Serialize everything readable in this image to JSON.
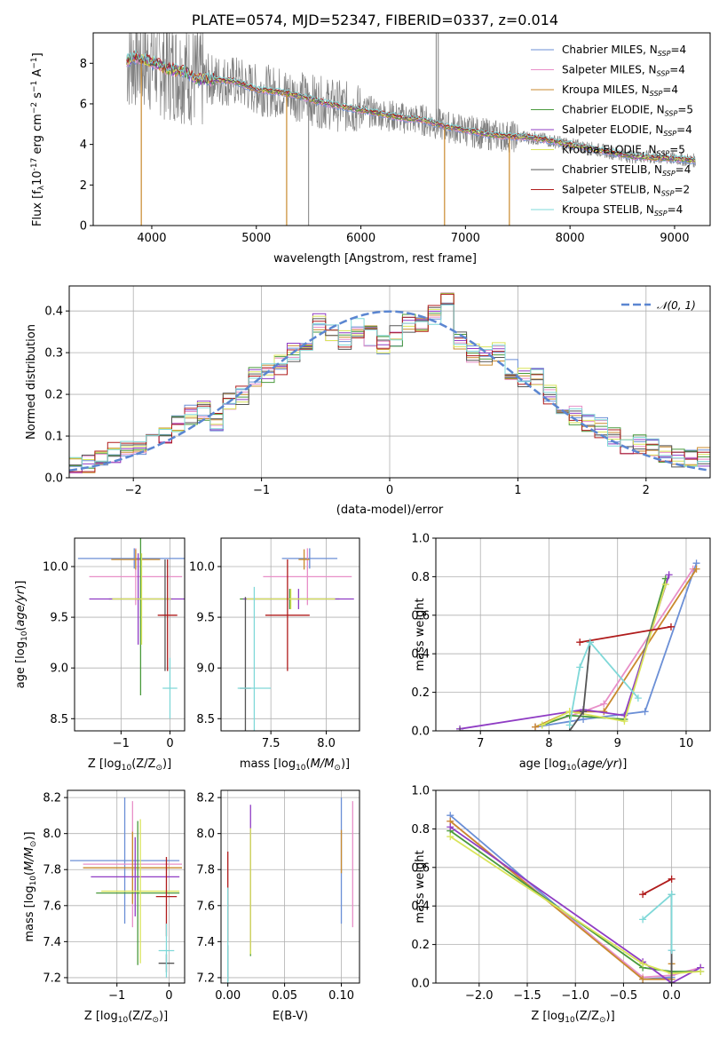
{
  "figure": {
    "title": "PLATE=0574, MJD=52347, FIBERID=0337, z=0.014"
  },
  "colors": {
    "Chabrier MILES": "#6b8fd6",
    "Salpeter MILES": "#e88fc8",
    "Kroupa MILES": "#c98a2e",
    "Chabrier ELODIE": "#4a9a3c",
    "Salpeter ELODIE": "#8f3cc4",
    "Kroupa ELODIE": "#d9e45a",
    "Chabrier STELIB": "#555555",
    "Salpeter STELIB": "#b01c1c",
    "Kroupa STELIB": "#7fd8d8",
    "data": "#808080",
    "gauss": "#5b86d1",
    "grid": "#b0b0b0"
  },
  "chart_data": [
    {
      "type": "line",
      "name": "spectrum",
      "title": "PLATE=0574, MJD=52347, FIBERID=0337, z=0.014",
      "xlabel": "wavelength [Angstrom, rest frame]",
      "ylabel_main": "Flux [f",
      "ylabel_sub": "λ",
      "ylabel_rest": "10",
      "ylabel_exp": "-17",
      "ylabel_units": "erg cm",
      "xlim": [
        3440,
        9340
      ],
      "ylim": [
        0,
        9.5
      ],
      "xticks": [
        4000,
        5000,
        6000,
        7000,
        8000,
        9000
      ],
      "yticks": [
        0,
        2,
        4,
        6,
        8
      ],
      "grid": false,
      "legend": [
        {
          "label": "Chabrier MILES, N",
          "sub": "SSP",
          "val": "=4"
        },
        {
          "label": "Salpeter MILES, N",
          "sub": "SSP",
          "val": "=4"
        },
        {
          "label": "Kroupa MILES, N",
          "sub": "SSP",
          "val": "=4"
        },
        {
          "label": "Chabrier ELODIE, N",
          "sub": "SSP",
          "val": "=5"
        },
        {
          "label": "Salpeter ELODIE, N",
          "sub": "SSP",
          "val": "=4"
        },
        {
          "label": "Kroupa ELODIE, N",
          "sub": "SSP",
          "val": "=5"
        },
        {
          "label": "Chabrier STELIB, N",
          "sub": "SSP",
          "val": "=4"
        },
        {
          "label": "Salpeter STELIB, N",
          "sub": "SSP",
          "val": "=2"
        },
        {
          "label": "Kroupa STELIB, N",
          "sub": "SSP",
          "val": "=4"
        }
      ],
      "model_envelope": {
        "x": [
          3760,
          3850,
          3950,
          4050,
          4150,
          4300,
          4450,
          4600,
          4800,
          5000,
          5200,
          5400,
          5600,
          5800,
          6000,
          6200,
          6400,
          6600,
          6800,
          7000,
          7200,
          7400,
          7600,
          7800,
          8000,
          8200,
          8400,
          8600,
          8800,
          9000,
          9200
        ],
        "y": [
          8.1,
          8.3,
          8.1,
          8.0,
          7.7,
          7.6,
          7.2,
          7.2,
          7.1,
          6.7,
          6.6,
          6.4,
          6.1,
          5.9,
          5.7,
          5.5,
          5.3,
          5.2,
          4.9,
          4.7,
          4.5,
          4.4,
          4.35,
          4.2,
          4.0,
          3.8,
          3.6,
          3.4,
          3.35,
          3.3,
          3.2
        ]
      },
      "model_drops": [
        {
          "x": 3900,
          "model": "Kroupa MILES"
        },
        {
          "x": 5290,
          "model": "Kroupa MILES"
        },
        {
          "x": 6800,
          "model": "Kroupa MILES"
        },
        {
          "x": 7420,
          "model": "Kroupa MILES"
        }
      ],
      "data_spikes": [
        {
          "x": 5500,
          "y": 0.0
        },
        {
          "x": 6720,
          "y": 9.5
        },
        {
          "x": 6740,
          "y": 9.5
        }
      ]
    },
    {
      "type": "line",
      "name": "residual-histogram",
      "xlabel": "(data-model)/error",
      "ylabel": "Normed distribution",
      "xlim": [
        -2.5,
        2.5
      ],
      "ylim": [
        0,
        0.46
      ],
      "xticks": [
        -2,
        -1,
        0,
        1,
        2
      ],
      "yticks": [
        0.0,
        0.1,
        0.2,
        0.3,
        0.4
      ],
      "grid": true,
      "legend": [
        {
          "label": "𝒩(0, 1)",
          "style": "dashed"
        }
      ],
      "bin_centers": [
        -2.45,
        -2.35,
        -2.25,
        -2.15,
        -2.05,
        -1.95,
        -1.85,
        -1.75,
        -1.65,
        -1.55,
        -1.45,
        -1.35,
        -1.25,
        -1.15,
        -1.05,
        -0.95,
        -0.85,
        -0.75,
        -0.65,
        -0.55,
        -0.45,
        -0.35,
        -0.25,
        -0.15,
        -0.05,
        0.05,
        0.15,
        0.25,
        0.35,
        0.45,
        0.55,
        0.65,
        0.75,
        0.85,
        0.95,
        1.05,
        1.15,
        1.25,
        1.35,
        1.45,
        1.55,
        1.65,
        1.75,
        1.85,
        1.95,
        2.05,
        2.15,
        2.25,
        2.35,
        2.45
      ],
      "hist_values": [
        0.03,
        0.035,
        0.045,
        0.06,
        0.07,
        0.08,
        0.09,
        0.1,
        0.13,
        0.15,
        0.16,
        0.13,
        0.18,
        0.2,
        0.24,
        0.25,
        0.27,
        0.3,
        0.31,
        0.37,
        0.35,
        0.33,
        0.36,
        0.34,
        0.32,
        0.34,
        0.37,
        0.36,
        0.39,
        0.42,
        0.33,
        0.3,
        0.29,
        0.3,
        0.26,
        0.24,
        0.24,
        0.2,
        0.17,
        0.15,
        0.13,
        0.12,
        0.1,
        0.08,
        0.08,
        0.07,
        0.06,
        0.05,
        0.05,
        0.05
      ],
      "gauss": {
        "mu": 0,
        "sigma": 1
      }
    },
    {
      "type": "scatter",
      "name": "age-vs-Z",
      "xlabel_main": "Z [log",
      "xlabel_sub": "10",
      "xlabel_rest": "(Z/Z",
      "ylabel_main": "age  [log",
      "ylabel_sub": "10",
      "ylabel_rest": "(age/yr)]",
      "xlim": [
        -1.95,
        0.3
      ],
      "ylim": [
        8.38,
        10.28
      ],
      "xticks": [
        -1,
        0
      ],
      "yticks": [
        8.5,
        9.0,
        9.5,
        10.0
      ],
      "grid": true,
      "points": [
        {
          "model": "Chabrier MILES",
          "x": -0.73,
          "y": 10.08,
          "xerr": 1.15,
          "yerr": 0.1
        },
        {
          "model": "Salpeter MILES",
          "x": -0.7,
          "y": 9.9,
          "xerr": 0.95,
          "yerr": 0.28
        },
        {
          "model": "Kroupa MILES",
          "x": -0.7,
          "y": 10.07,
          "xerr": 0.5,
          "yerr": 0.1
        },
        {
          "model": "Chabrier ELODIE",
          "x": -0.6,
          "y": 9.68,
          "xerr": 0.65,
          "yerr": 0.95
        },
        {
          "model": "Salpeter ELODIE",
          "x": -0.65,
          "y": 9.68,
          "xerr": 1.0,
          "yerr": 0.45
        },
        {
          "model": "Kroupa ELODIE",
          "x": -0.58,
          "y": 9.68,
          "xerr": 0.6,
          "yerr": 0.45
        },
        {
          "model": "Chabrier STELIB",
          "x": -0.1,
          "y": 9.52,
          "xerr": 0.05,
          "yerr": 0.55
        },
        {
          "model": "Salpeter STELIB",
          "x": -0.05,
          "y": 9.52,
          "xerr": 0.2,
          "yerr": 0.55
        },
        {
          "model": "Kroupa STELIB",
          "x": 0.0,
          "y": 8.8,
          "xerr": 0.15,
          "yerr": 0.3
        }
      ]
    },
    {
      "type": "scatter",
      "name": "age-vs-mass",
      "xlabel_main": "mass [log",
      "xlabel_sub": "10",
      "xlabel_rest": "(M/M",
      "xlim": [
        7.05,
        8.3
      ],
      "ylim": [
        8.38,
        10.28
      ],
      "xticks": [
        7.5,
        8.0
      ],
      "yticks": [
        8.5,
        9.0,
        9.5,
        10.0
      ],
      "grid": true,
      "points": [
        {
          "model": "Chabrier MILES",
          "x": 7.85,
          "y": 10.08,
          "xerr": 0.25,
          "yerr": 0.1
        },
        {
          "model": "Salpeter MILES",
          "x": 7.83,
          "y": 9.9,
          "xerr": 0.4,
          "yerr": 0.28
        },
        {
          "model": "Kroupa MILES",
          "x": 7.8,
          "y": 10.07,
          "xerr": 0.05,
          "yerr": 0.1
        },
        {
          "model": "Chabrier ELODIE",
          "x": 7.67,
          "y": 9.68,
          "xerr": 0.45,
          "yerr": 0.1
        },
        {
          "model": "Salpeter ELODIE",
          "x": 7.75,
          "y": 9.68,
          "xerr": 0.5,
          "yerr": 0.1
        },
        {
          "model": "Kroupa ELODIE",
          "x": 7.68,
          "y": 9.68,
          "xerr": 0.4,
          "yerr": 0.1
        },
        {
          "model": "Chabrier STELIB",
          "x": 7.27,
          "y": 8.8,
          "xerr": 0.05,
          "yerr": 0.9
        },
        {
          "model": "Salpeter STELIB",
          "x": 7.65,
          "y": 9.52,
          "xerr": 0.2,
          "yerr": 0.55
        },
        {
          "model": "Kroupa STELIB",
          "x": 7.35,
          "y": 8.8,
          "xerr": 0.15,
          "yerr": 1.0
        }
      ]
    },
    {
      "type": "line",
      "name": "mass-weight-vs-age",
      "xlabel_main": "age  [log",
      "xlabel_sub": "10",
      "xlabel_rest": "(age/yr)]",
      "ylabel": "mass weight",
      "xlim": [
        6.35,
        10.35
      ],
      "ylim": [
        0,
        1.0
      ],
      "xticks": [
        7,
        8,
        9,
        10
      ],
      "yticks": [
        0.0,
        0.2,
        0.4,
        0.6,
        0.8,
        1.0
      ],
      "grid": true,
      "series": [
        {
          "model": "Chabrier MILES",
          "x": [
            7.8,
            8.5,
            9.4,
            10.15
          ],
          "y": [
            0.02,
            0.06,
            0.1,
            0.87
          ]
        },
        {
          "model": "Salpeter MILES",
          "x": [
            7.8,
            8.5,
            8.8,
            10.1
          ],
          "y": [
            0.02,
            0.1,
            0.14,
            0.84
          ]
        },
        {
          "model": "Kroupa MILES",
          "x": [
            7.8,
            8.3,
            8.8,
            10.15
          ],
          "y": [
            0.02,
            0.1,
            0.1,
            0.84
          ]
        },
        {
          "model": "Chabrier ELODIE",
          "x": [
            7.9,
            8.3,
            9.1,
            9.7
          ],
          "y": [
            0.03,
            0.08,
            0.06,
            0.79
          ]
        },
        {
          "model": "Salpeter ELODIE",
          "x": [
            6.7,
            8.5,
            9.1,
            9.75
          ],
          "y": [
            0.01,
            0.11,
            0.08,
            0.81
          ]
        },
        {
          "model": "Kroupa ELODIE",
          "x": [
            7.9,
            8.3,
            9.1,
            9.7
          ],
          "y": [
            0.03,
            0.1,
            0.05,
            0.76
          ]
        },
        {
          "model": "Chabrier STELIB",
          "x": [
            6.7,
            8.3,
            8.5,
            8.6
          ],
          "y": [
            0.0,
            0.0,
            0.1,
            0.46
          ]
        },
        {
          "model": "Salpeter STELIB",
          "x": [
            8.45,
            9.78
          ],
          "y": [
            0.46,
            0.54
          ]
        },
        {
          "model": "Kroupa STELIB",
          "x": [
            8.3,
            8.45,
            8.6,
            9.3
          ],
          "y": [
            0.03,
            0.33,
            0.46,
            0.17
          ]
        }
      ]
    },
    {
      "type": "scatter",
      "name": "mass-vs-Z",
      "xlabel_main": "Z [log",
      "xlabel_sub": "10",
      "xlabel_rest": "(Z/Z",
      "ylabel_main": "mass [log",
      "ylabel_sub": "10",
      "ylabel_rest": "(M/M",
      "xlim": [
        -1.95,
        0.3
      ],
      "ylim": [
        7.17,
        8.24
      ],
      "xticks": [
        -1,
        0
      ],
      "yticks": [
        7.2,
        7.4,
        7.6,
        7.8,
        8.0,
        8.2
      ],
      "grid": true,
      "points": [
        {
          "model": "Chabrier MILES",
          "x": -0.85,
          "y": 7.85,
          "xerr": 1.05,
          "yerr": 0.35
        },
        {
          "model": "Salpeter MILES",
          "x": -0.7,
          "y": 7.83,
          "xerr": 0.95,
          "yerr": 0.35
        },
        {
          "model": "Kroupa MILES",
          "x": -0.7,
          "y": 7.81,
          "xerr": 0.95,
          "yerr": 0.2
        },
        {
          "model": "Chabrier ELODIE",
          "x": -0.6,
          "y": 7.67,
          "xerr": 0.8,
          "yerr": 0.4
        },
        {
          "model": "Salpeter ELODIE",
          "x": -0.65,
          "y": 7.76,
          "xerr": 0.85,
          "yerr": 0.22
        },
        {
          "model": "Kroupa ELODIE",
          "x": -0.55,
          "y": 7.68,
          "xerr": 0.75,
          "yerr": 0.4
        },
        {
          "model": "Chabrier STELIB",
          "x": -0.05,
          "y": 7.28,
          "xerr": 0.15,
          "yerr": 0.05
        },
        {
          "model": "Salpeter STELIB",
          "x": -0.05,
          "y": 7.65,
          "xerr": 0.2,
          "yerr": 0.22
        },
        {
          "model": "Kroupa STELIB",
          "x": -0.05,
          "y": 7.35,
          "xerr": 0.15,
          "yerr": 0.15
        }
      ]
    },
    {
      "type": "scatter",
      "name": "mass-vs-EBV",
      "xlabel": "E(B-V)",
      "xlim": [
        -0.006,
        0.116
      ],
      "ylim": [
        7.17,
        8.24
      ],
      "xticks": [
        0.0,
        0.05,
        0.1
      ],
      "yticks": [
        7.2,
        7.4,
        7.6,
        7.8,
        8.0,
        8.2
      ],
      "grid": true,
      "points": [
        {
          "model": "Chabrier MILES",
          "x": 0.1,
          "y": 7.85,
          "xerr": 0,
          "yerr": 0.35
        },
        {
          "model": "Salpeter MILES",
          "x": 0.11,
          "y": 7.83,
          "xerr": 0,
          "yerr": 0.35
        },
        {
          "model": "Kroupa MILES",
          "x": 0.1,
          "y": 7.9,
          "xerr": 0,
          "yerr": 0.12
        },
        {
          "model": "Chabrier ELODIE",
          "x": 0.02,
          "y": 7.67,
          "xerr": 0,
          "yerr": 0.35
        },
        {
          "model": "Salpeter ELODIE",
          "x": 0.02,
          "y": 7.76,
          "xerr": 0,
          "yerr": 0.4
        },
        {
          "model": "Kroupa ELODIE",
          "x": 0.02,
          "y": 7.68,
          "xerr": 0,
          "yerr": 0.35
        },
        {
          "model": "Chabrier STELIB",
          "x": 0.0,
          "y": 7.28,
          "xerr": 0,
          "yerr": 0.1
        },
        {
          "model": "Salpeter STELIB",
          "x": 0.0,
          "y": 7.65,
          "xerr": 0,
          "yerr": 0.25
        },
        {
          "model": "Kroupa STELIB",
          "x": 0.0,
          "y": 7.35,
          "xerr": 0,
          "yerr": 0.35
        }
      ]
    },
    {
      "type": "line",
      "name": "mass-weight-vs-Z",
      "xlabel_main": "Z [log",
      "xlabel_sub": "10",
      "xlabel_rest": "(Z/Z",
      "ylabel": "mass weight",
      "xlim": [
        -2.45,
        0.4
      ],
      "ylim": [
        0,
        1.0
      ],
      "xticks": [
        -2.0,
        -1.5,
        -1.0,
        -0.5,
        0.0
      ],
      "yticks": [
        0.0,
        0.2,
        0.4,
        0.6,
        0.8,
        1.0
      ],
      "grid": true,
      "series": [
        {
          "model": "Chabrier MILES",
          "x": [
            -2.3,
            -0.3,
            0.0,
            0.0
          ],
          "y": [
            0.87,
            0.02,
            0.03,
            0.17
          ]
        },
        {
          "model": "Salpeter MILES",
          "x": [
            -2.3,
            -0.3,
            0.0,
            0.3
          ],
          "y": [
            0.84,
            0.03,
            0.04,
            0.08
          ]
        },
        {
          "model": "Kroupa MILES",
          "x": [
            -2.3,
            -0.3,
            0.0,
            0.0
          ],
          "y": [
            0.84,
            0.02,
            0.02,
            0.1
          ]
        },
        {
          "model": "Chabrier ELODIE",
          "x": [
            -2.3,
            -0.3,
            0.0,
            0.3
          ],
          "y": [
            0.79,
            0.08,
            0.06,
            0.06
          ]
        },
        {
          "model": "Salpeter ELODIE",
          "x": [
            -2.3,
            -0.3,
            0.0,
            0.3
          ],
          "y": [
            0.81,
            0.11,
            0.0,
            0.08
          ]
        },
        {
          "model": "Kroupa ELODIE",
          "x": [
            -2.3,
            -0.3,
            0.0,
            0.3
          ],
          "y": [
            0.76,
            0.1,
            0.05,
            0.06
          ]
        },
        {
          "model": "Chabrier STELIB",
          "x": [
            0.0,
            0.0
          ],
          "y": [
            0.0,
            0.46
          ]
        },
        {
          "model": "Salpeter STELIB",
          "x": [
            -0.3,
            0.0
          ],
          "y": [
            0.46,
            0.54
          ]
        },
        {
          "model": "Kroupa STELIB",
          "x": [
            -0.3,
            0.0,
            0.0
          ],
          "y": [
            0.33,
            0.46,
            0.17
          ]
        }
      ]
    }
  ]
}
